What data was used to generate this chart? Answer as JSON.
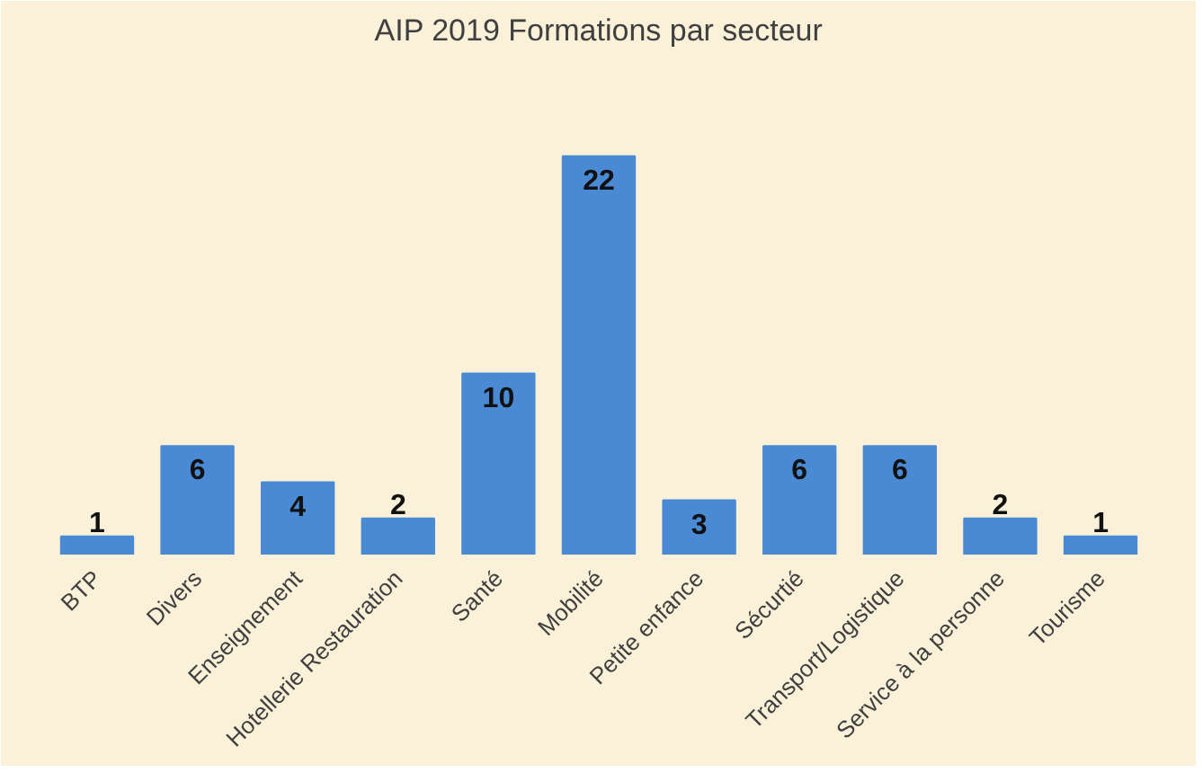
{
  "chart_data": {
    "type": "bar",
    "title": "AIP 2019 Formations par secteur",
    "categories": [
      "BTP",
      "Divers",
      "Enseignement",
      "Hotellerie Restauration",
      "Santé",
      "Mobilité",
      "Petite enfance",
      "Sécurtié",
      "Transport/Logistique",
      "Service à la personne",
      "Tourisme"
    ],
    "values": [
      1,
      6,
      4,
      2,
      10,
      22,
      3,
      6,
      6,
      2,
      1
    ],
    "color": "#4a8ad4",
    "data_labels": true
  }
}
